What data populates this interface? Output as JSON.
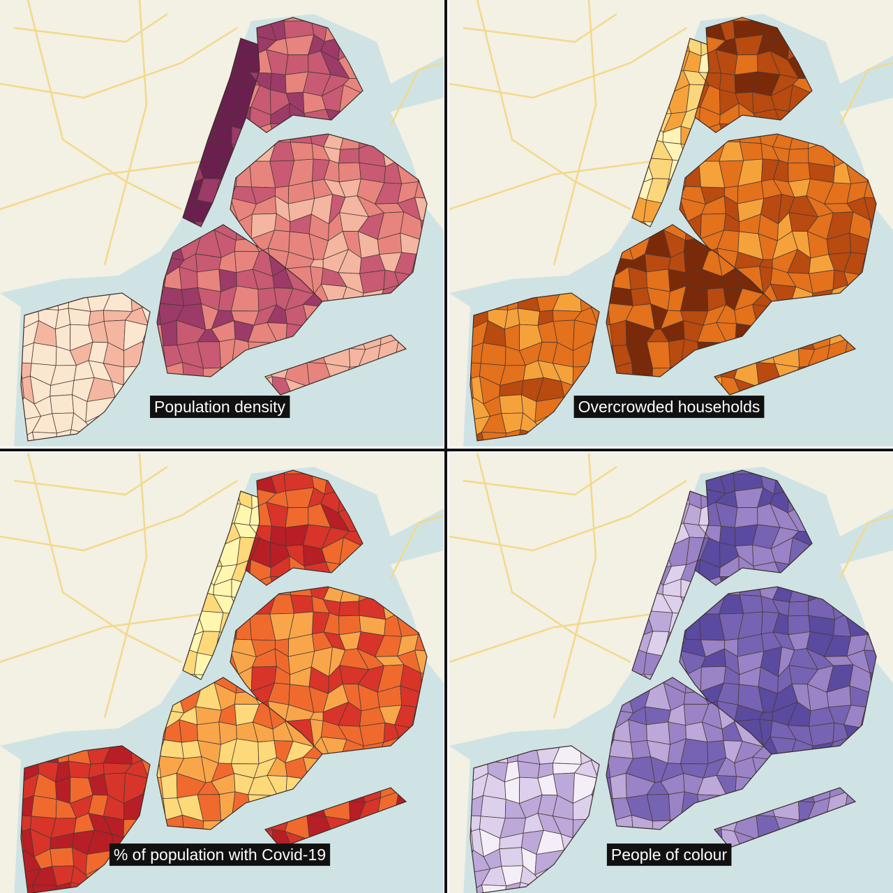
{
  "panels": [
    {
      "label": "Population density"
    },
    {
      "label": "Overcrowded households"
    },
    {
      "label": "% of population with Covid-19"
    },
    {
      "label": "People of colour"
    }
  ]
}
